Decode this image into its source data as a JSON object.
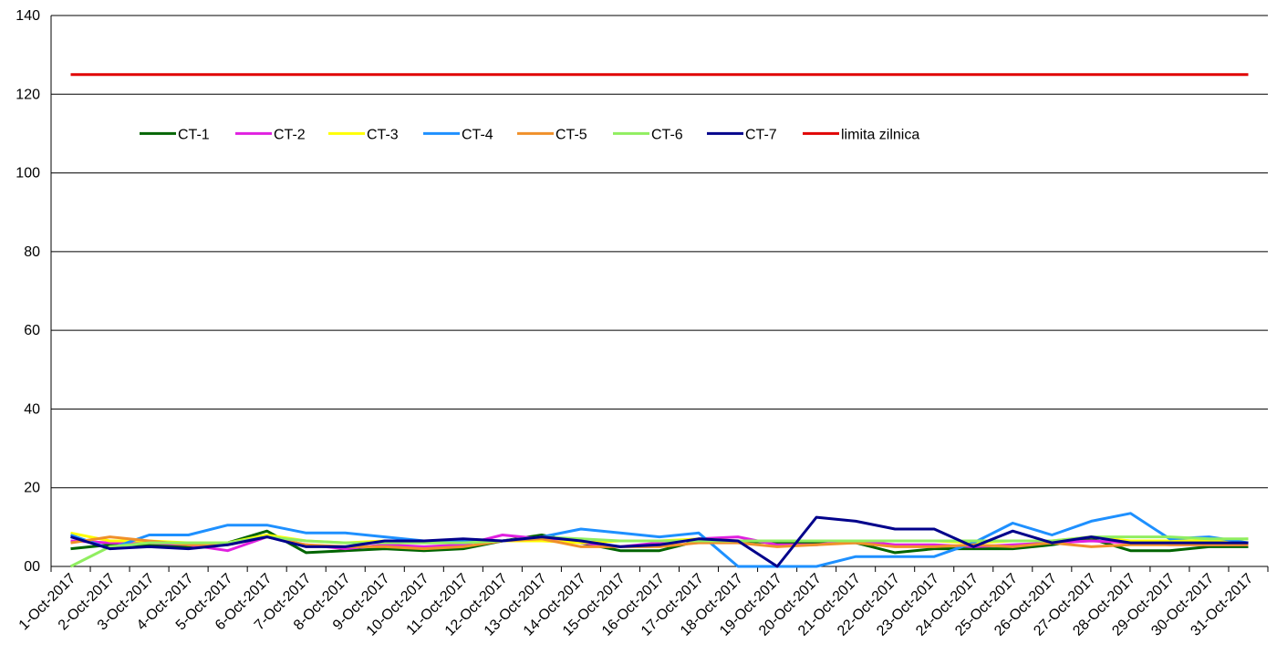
{
  "chart_data": {
    "type": "line",
    "title": "",
    "xlabel": "",
    "ylabel": "",
    "ylim": [
      0,
      140
    ],
    "yticks": [
      0,
      20,
      40,
      60,
      80,
      100,
      120,
      140
    ],
    "ytick_labels": [
      "00",
      "20",
      "40",
      "60",
      "80",
      "100",
      "120",
      "140"
    ],
    "grid": "horizontal",
    "legend_position": "upper-left",
    "categories": [
      "1-Oct-2017",
      "2-Oct-2017",
      "3-Oct-2017",
      "4-Oct-2017",
      "5-Oct-2017",
      "6-Oct-2017",
      "7-Oct-2017",
      "8-Oct-2017",
      "9-Oct-2017",
      "10-Oct-2017",
      "11-Oct-2017",
      "12-Oct-2017",
      "13-Oct-2017",
      "14-Oct-2017",
      "15-Oct-2017",
      "16-Oct-2017",
      "17-Oct-2017",
      "18-Oct-2017",
      "19-Oct-2017",
      "20-Oct-2017",
      "21-Oct-2017",
      "22-Oct-2017",
      "23-Oct-2017",
      "24-Oct-2017",
      "25-Oct-2017",
      "26-Oct-2017",
      "27-Oct-2017",
      "28-Oct-2017",
      "29-Oct-2017",
      "30-Oct-2017",
      "31-Oct-2017"
    ],
    "series": [
      {
        "name": "CT-1",
        "color": "#006400",
        "values": [
          4.5,
          5.5,
          5.5,
          5.0,
          6.0,
          9.0,
          3.5,
          4.0,
          4.5,
          4.0,
          4.5,
          6.5,
          8.0,
          6.0,
          4.0,
          4.0,
          6.5,
          6.5,
          6.0,
          6.0,
          6.0,
          3.5,
          4.5,
          4.5,
          4.5,
          5.5,
          7.0,
          4.0,
          4.0,
          5.0,
          5.0
        ]
      },
      {
        "name": "CT-2",
        "color": "#e020e0",
        "values": [
          6.5,
          6.0,
          6.0,
          5.5,
          4.0,
          7.5,
          5.5,
          4.5,
          5.5,
          5.0,
          5.5,
          8.0,
          7.0,
          6.0,
          5.0,
          6.0,
          7.0,
          7.5,
          5.5,
          5.5,
          6.5,
          5.5,
          5.5,
          5.0,
          5.5,
          6.0,
          6.5,
          6.0,
          5.5,
          5.5,
          5.5
        ]
      },
      {
        "name": "CT-3",
        "color": "#ffff00",
        "values": [
          8.5,
          6.5,
          6.5,
          6.0,
          6.0,
          8.0,
          6.5,
          6.0,
          6.5,
          6.0,
          6.5,
          6.5,
          6.5,
          6.0,
          6.5,
          6.5,
          7.0,
          6.5,
          6.5,
          6.5,
          6.5,
          6.5,
          6.5,
          6.0,
          6.5,
          6.5,
          7.5,
          6.5,
          6.5,
          6.5,
          7.0
        ]
      },
      {
        "name": "CT-4",
        "color": "#1e90ff",
        "values": [
          8.0,
          4.5,
          8.0,
          8.0,
          10.5,
          10.5,
          8.5,
          8.5,
          7.5,
          6.5,
          6.5,
          6.5,
          7.5,
          9.5,
          8.5,
          7.5,
          8.5,
          0.0,
          0.0,
          0.0,
          2.5,
          2.5,
          2.5,
          6.0,
          11.0,
          8.0,
          11.5,
          13.5,
          7.0,
          7.5,
          6.0
        ]
      },
      {
        "name": "CT-5",
        "color": "#f0902a",
        "values": [
          6.0,
          7.5,
          6.5,
          5.5,
          5.5,
          7.5,
          5.5,
          5.0,
          5.0,
          4.5,
          5.0,
          6.5,
          7.0,
          5.0,
          5.0,
          5.0,
          6.0,
          6.0,
          5.0,
          5.5,
          6.0,
          5.0,
          5.0,
          5.5,
          5.0,
          6.0,
          5.0,
          5.5,
          5.5,
          5.5,
          5.5
        ]
      },
      {
        "name": "CT-6",
        "color": "#90ee60",
        "values": [
          0.0,
          5.0,
          6.0,
          6.0,
          6.0,
          7.5,
          6.5,
          6.0,
          6.0,
          6.0,
          6.0,
          6.5,
          7.5,
          7.0,
          6.5,
          6.5,
          6.5,
          6.5,
          6.5,
          6.5,
          6.5,
          6.5,
          6.5,
          6.5,
          6.5,
          6.5,
          7.5,
          7.5,
          7.5,
          7.0,
          7.0
        ]
      },
      {
        "name": "CT-7",
        "color": "#00008b",
        "values": [
          7.5,
          4.5,
          5.0,
          4.5,
          5.5,
          7.5,
          5.0,
          5.0,
          6.5,
          6.5,
          7.0,
          6.5,
          7.5,
          6.5,
          5.0,
          5.5,
          7.0,
          6.5,
          0.0,
          12.5,
          11.5,
          9.5,
          9.5,
          5.0,
          9.0,
          6.0,
          7.5,
          6.0,
          6.0,
          6.0,
          6.0
        ]
      },
      {
        "name": "limita zilnica",
        "color": "#e00000",
        "values": [
          125,
          125,
          125,
          125,
          125,
          125,
          125,
          125,
          125,
          125,
          125,
          125,
          125,
          125,
          125,
          125,
          125,
          125,
          125,
          125,
          125,
          125,
          125,
          125,
          125,
          125,
          125,
          125,
          125,
          125,
          125
        ]
      }
    ]
  }
}
